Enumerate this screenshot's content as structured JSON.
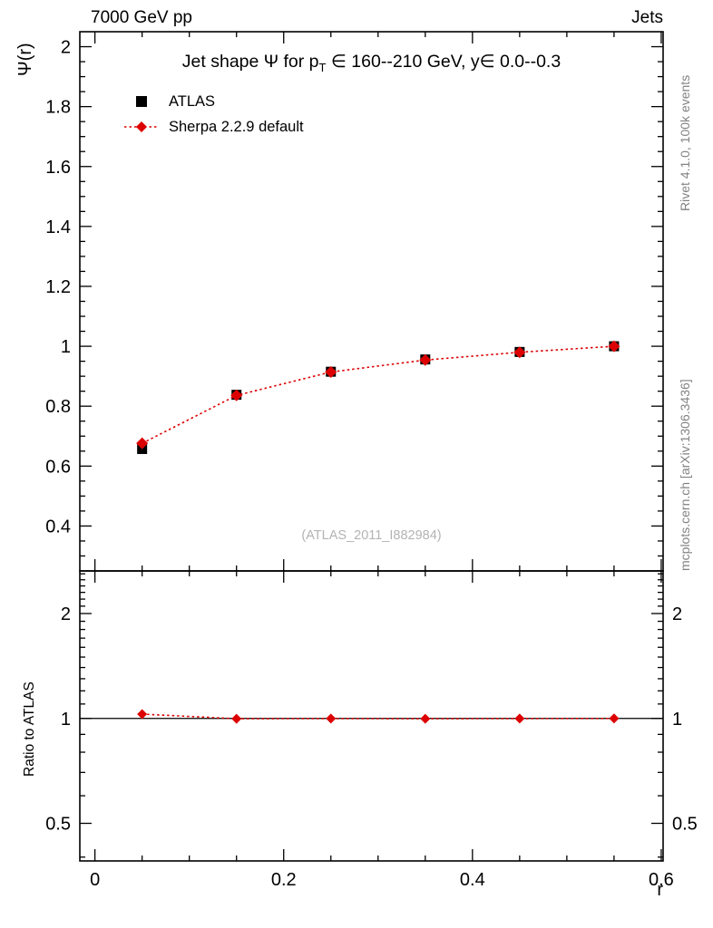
{
  "header": {
    "beam": "7000 GeV pp",
    "process": "Jets"
  },
  "watermarks": {
    "rivet": "Rivet 4.1.0,  100k events",
    "mcplots": "mcplots.cern.ch [arXiv:1306.3436]",
    "analysis": "(ATLAS_2011_I882984)"
  },
  "chart_data": [
    {
      "type": "scatter",
      "title": "Jet shape Ψ for pT ∈ 160--210 GeV, y∈ 0.0--0.3",
      "title_parts": {
        "pre": "Jet shape Ψ for p",
        "sub": "T",
        "post": " ∈ 160--210 GeV, y∈ 0.0--0.3"
      },
      "xlabel": "",
      "ylabel": "Ψ(r)",
      "xlim": [
        -0.016,
        0.602
      ],
      "ylim": [
        0.25,
        2.05
      ],
      "xticks": [
        0,
        0.2,
        0.4,
        0.6
      ],
      "yticks": [
        0.4,
        0.6,
        0.8,
        1,
        1.2,
        1.4,
        1.6,
        1.8,
        2
      ],
      "x_minor_step": 0.05,
      "y_minor_step": 0.05,
      "grid": false,
      "legend_position": "top-left",
      "series": [
        {
          "name": "ATLAS",
          "marker": "square",
          "color": "#000000",
          "line": "none",
          "x": [
            0.05,
            0.15,
            0.25,
            0.35,
            0.45,
            0.55
          ],
          "y": [
            0.657,
            0.838,
            0.915,
            0.956,
            0.981,
            1.0
          ],
          "yerr": [
            0.013,
            0.008,
            0.006,
            0.004,
            0.002,
            0.001
          ]
        },
        {
          "name": "Sherpa 2.2.9 default",
          "marker": "diamond",
          "color": "#dd0000",
          "line": "dotted",
          "x": [
            0.05,
            0.15,
            0.25,
            0.35,
            0.45,
            0.55
          ],
          "y": [
            0.676,
            0.836,
            0.914,
            0.954,
            0.98,
            1.0
          ],
          "yerr": [
            0.005,
            0.003,
            0.002,
            0.002,
            0.001,
            0.001
          ]
        }
      ]
    },
    {
      "type": "scatter",
      "title": "",
      "xlabel": "r",
      "ylabel": "Ratio to ATLAS",
      "yscale": "log",
      "xlim": [
        -0.016,
        0.602
      ],
      "ylim": [
        0.39,
        2.65
      ],
      "xticks": [
        0,
        0.2,
        0.4,
        0.6
      ],
      "yticks": [
        0.5,
        1,
        2
      ],
      "reference_line": 1,
      "grid": false,
      "series": [
        {
          "name": "Sherpa 2.2.9 default",
          "marker": "diamond",
          "color": "#dd0000",
          "line": "dotted",
          "x": [
            0.05,
            0.15,
            0.25,
            0.35,
            0.45,
            0.55
          ],
          "y": [
            1.029,
            0.998,
            0.999,
            0.998,
            0.999,
            1.0
          ],
          "yerr": [
            0.012,
            0.007,
            0.005,
            0.004,
            0.003,
            0.002
          ]
        }
      ]
    }
  ]
}
